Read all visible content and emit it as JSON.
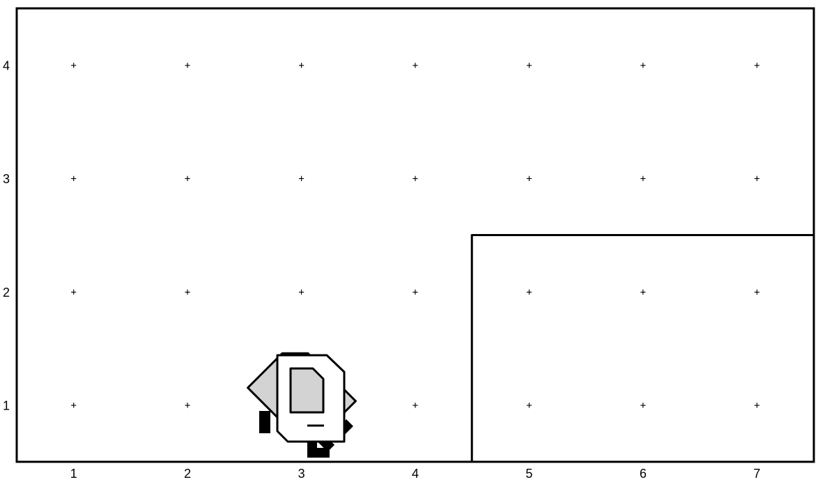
{
  "world": {
    "columns": 7,
    "rows": 4,
    "x_labels": [
      "1",
      "2",
      "3",
      "4",
      "5",
      "6",
      "7"
    ],
    "y_labels": [
      "1",
      "2",
      "3",
      "4"
    ],
    "corner_marker": "+",
    "walls": [
      {
        "type": "horizontal",
        "above_row": 2,
        "from_column": 5,
        "to_column": 7
      },
      {
        "type": "vertical",
        "east_of_column": 4,
        "from_row": 1,
        "to_row": 2
      }
    ]
  },
  "robot": {
    "name": "karel-robot-icon",
    "column": 3,
    "row": 1,
    "body_color": "#ffffff",
    "screen_color": "#d3d3d3",
    "outline_color": "#000000",
    "ghost_heading": "west"
  },
  "colors": {
    "border": "#000000",
    "background": "#ffffff",
    "text": "#000000"
  }
}
